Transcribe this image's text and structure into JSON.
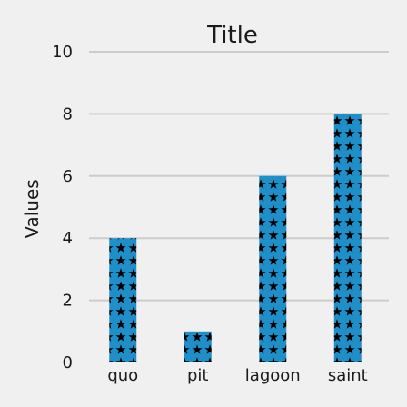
{
  "chart_data": {
    "type": "bar",
    "title": "Title",
    "xlabel": "",
    "ylabel": "Values",
    "categories": [
      "quo",
      "pit",
      "lagoon",
      "saint"
    ],
    "values": [
      4,
      1,
      6,
      8
    ],
    "ylim": [
      0,
      10
    ],
    "yticks": [
      0,
      2,
      4,
      6,
      8,
      10
    ],
    "grid": true,
    "bar_color": "#1f8fc9",
    "pattern": "stars",
    "pattern_color": "#000000",
    "background": "#f0f0f0",
    "grid_color": "#cccccc"
  }
}
